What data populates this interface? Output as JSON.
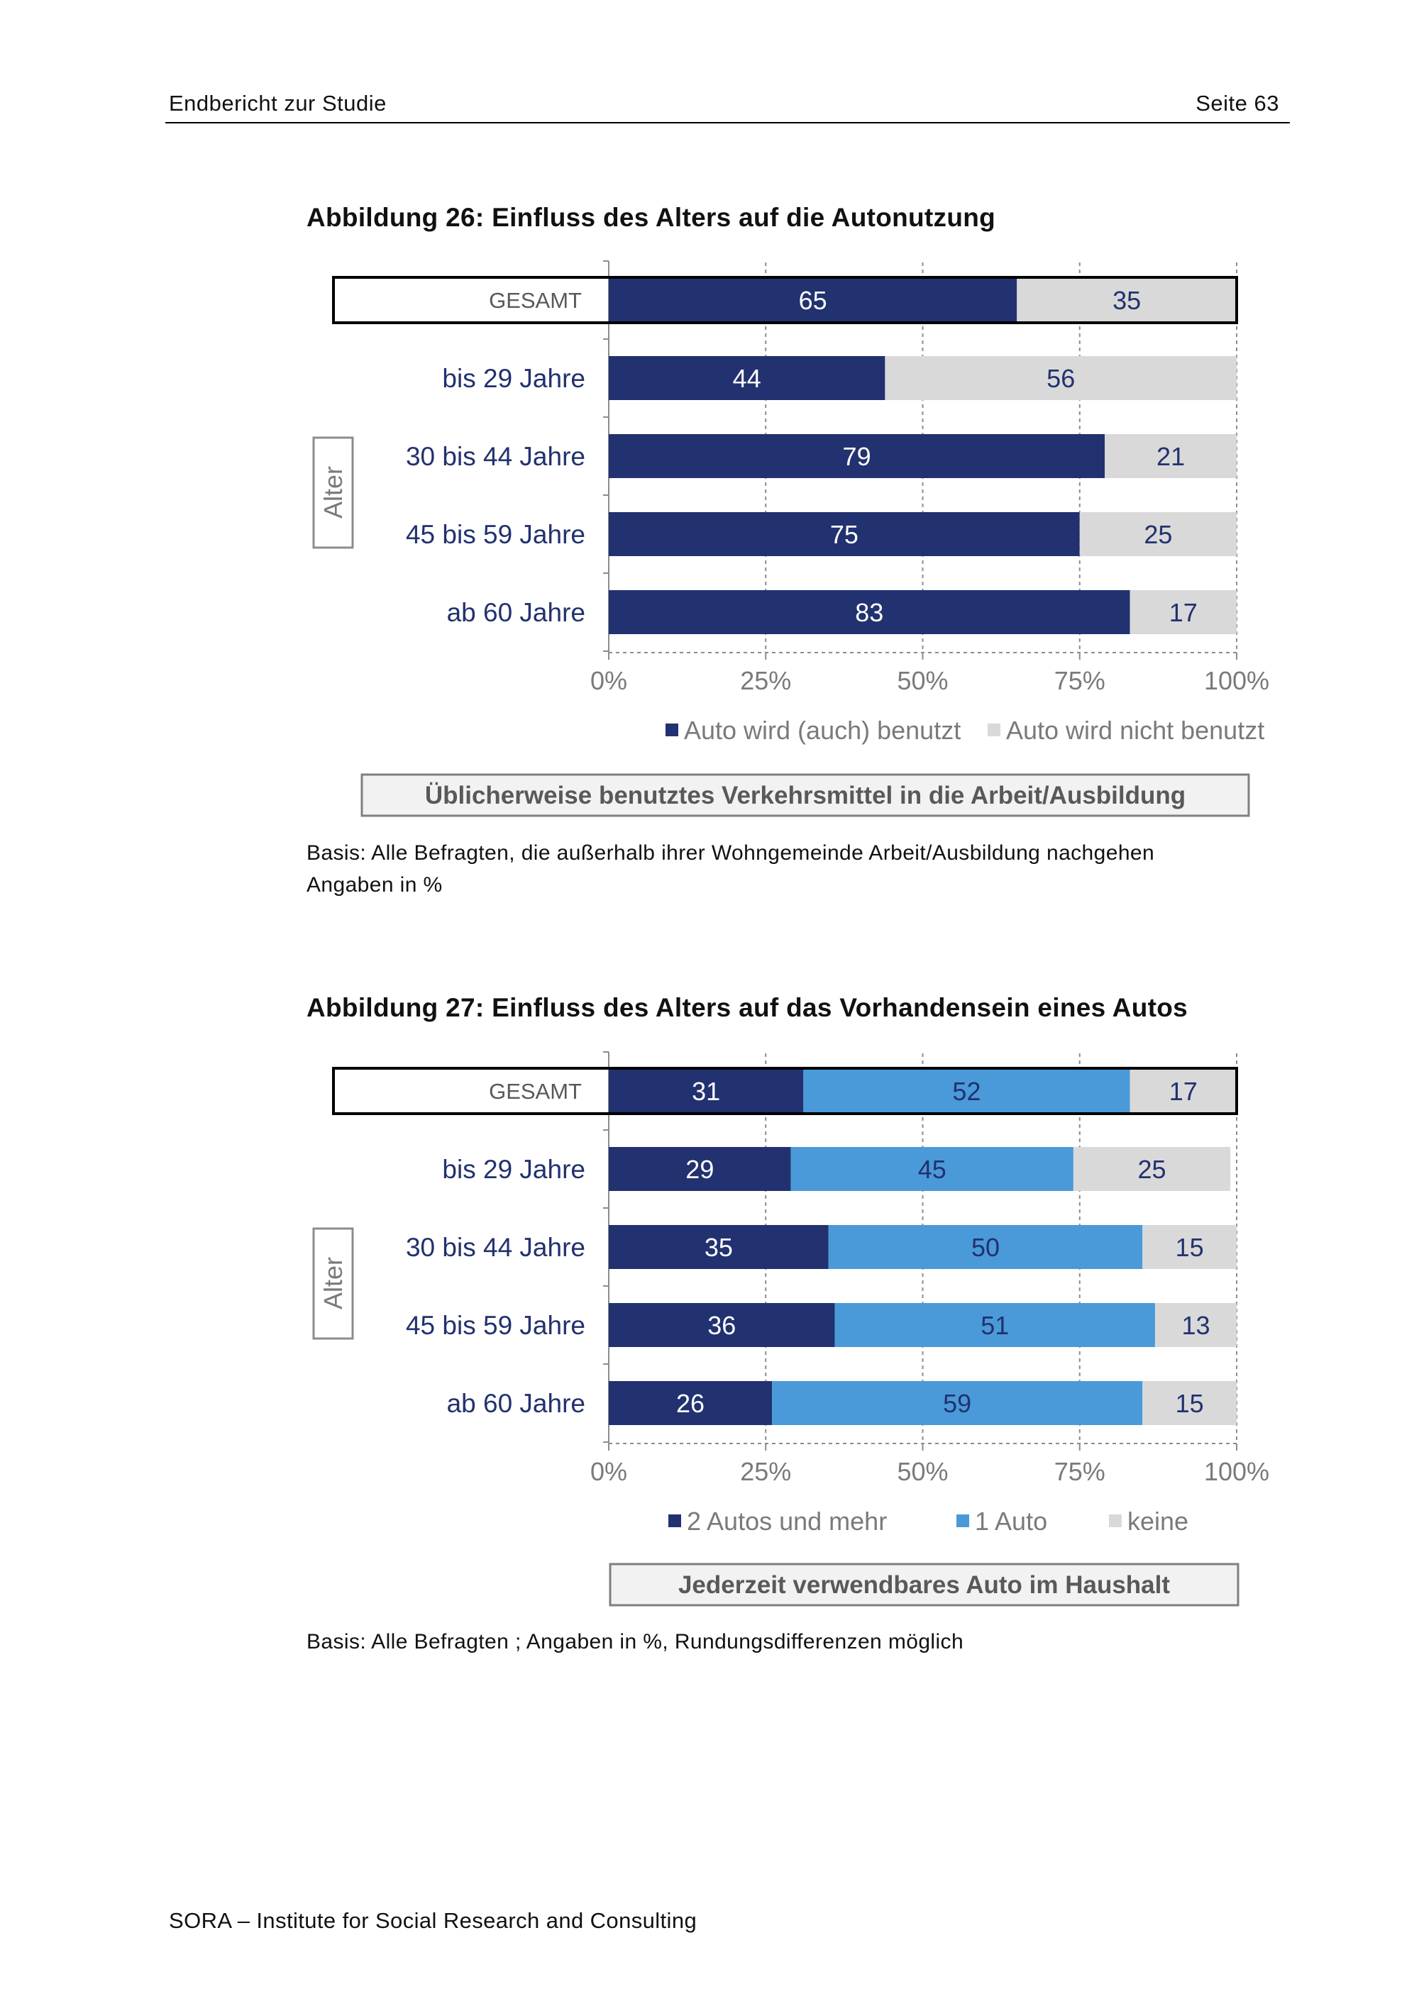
{
  "header": {
    "left": "Endbericht zur Studie",
    "right": "Seite 63"
  },
  "footer": "SORA – Institute for Social Research and Consulting",
  "colors": {
    "navy": "#22316f",
    "light_blue": "#4a9ad9",
    "grey": "#d9d9d9",
    "label": "#22316f"
  },
  "chart_data": [
    {
      "type": "bar",
      "stacked": true,
      "orientation": "horizontal",
      "figure_title": "Abbildung 26: Einfluss des Alters auf die Autonutzung",
      "group_label": "Alter",
      "total_label": "GESAMT",
      "categories": [
        "GESAMT",
        "bis 29 Jahre",
        "30 bis 44 Jahre",
        "45 bis 59 Jahre",
        "ab 60 Jahre"
      ],
      "series": [
        {
          "name": "Auto wird (auch) benutzt",
          "color": "#22316f",
          "label_color": "#ffffff",
          "values": [
            65,
            44,
            79,
            75,
            83
          ]
        },
        {
          "name": "Auto wird nicht benutzt",
          "color": "#d9d9d9",
          "label_color": "#22316f",
          "values": [
            35,
            56,
            21,
            25,
            17
          ]
        }
      ],
      "x_ticks": [
        "0%",
        "25%",
        "50%",
        "75%",
        "100%"
      ],
      "xlim": [
        0,
        100
      ],
      "legend_position": "bottom",
      "caption_box": "Üblicherweise benutztes Verkehrsmittel in die Arbeit/Ausbildung",
      "notes": [
        "Basis: Alle Befragten, die außerhalb ihrer Wohngemeinde Arbeit/Ausbildung nachgehen",
        "Angaben in %"
      ]
    },
    {
      "type": "bar",
      "stacked": true,
      "orientation": "horizontal",
      "figure_title": "Abbildung 27: Einfluss des Alters auf das Vorhandensein eines Autos",
      "group_label": "Alter",
      "total_label": "GESAMT",
      "categories": [
        "GESAMT",
        "bis 29 Jahre",
        "30 bis 44 Jahre",
        "45 bis 59 Jahre",
        "ab 60 Jahre"
      ],
      "series": [
        {
          "name": "2 Autos und mehr",
          "color": "#22316f",
          "label_color": "#ffffff",
          "values": [
            31,
            29,
            35,
            36,
            26
          ]
        },
        {
          "name": "1 Auto",
          "color": "#4a9ad9",
          "label_color": "#22316f",
          "values": [
            52,
            45,
            50,
            51,
            59
          ]
        },
        {
          "name": "keine",
          "color": "#d9d9d9",
          "label_color": "#22316f",
          "values": [
            17,
            25,
            15,
            13,
            15
          ]
        }
      ],
      "x_ticks": [
        "0%",
        "25%",
        "50%",
        "75%",
        "100%"
      ],
      "xlim": [
        0,
        100
      ],
      "legend_position": "bottom",
      "caption_box": "Jederzeit verwendbares Auto im Haushalt",
      "notes": [
        "Basis: Alle Befragten ; Angaben in %, Rundungsdifferenzen möglich"
      ]
    }
  ]
}
